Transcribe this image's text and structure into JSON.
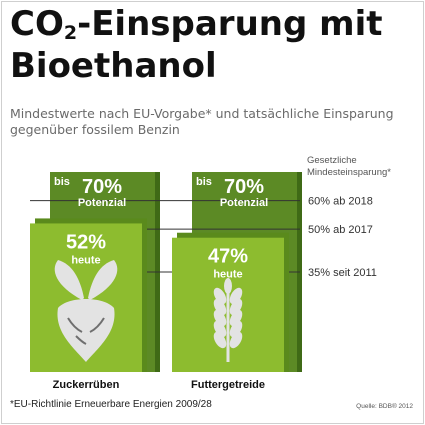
{
  "title_main": "CO",
  "title_sub": "2",
  "title_rest": "-Einsparung mit",
  "title_line2": "Bioethanol",
  "subtitle": "Mindestwerte nach EU-Vorgabe* und tatsächliche Einsparung gegenüber fossilem Benzin",
  "footnote": "*EU-Richtlinie Erneuerbare Energien 2009/28",
  "source": "Quelle: BDB® 2012",
  "colors": {
    "potential_dark": "#5c8a25",
    "potential_shadow": "#3f6a16",
    "actual_light": "#8dbc2f",
    "actual_shadow": "#5a8a1c",
    "icon_fill": "#e3e3e3",
    "icon_dark": "#6f6f6f",
    "reference_line": "#333333",
    "text_light": "#ffffff"
  },
  "icons": [
    "beet-icon",
    "wheat-icon"
  ],
  "chart_data": {
    "type": "bar",
    "categories": [
      "Zuckerrüben",
      "Futtergetreide"
    ],
    "series": [
      {
        "values": [
          70,
          70
        ],
        "labels": [
          {
            "prefix": "bis",
            "value": "70%",
            "caption": "Potenzial"
          },
          {
            "prefix": "bis",
            "value": "70%",
            "caption": "Potenzial"
          }
        ]
      },
      {
        "values": [
          52,
          47
        ],
        "labels": [
          {
            "value": "52%",
            "caption": "heute"
          },
          {
            "value": "47%",
            "caption": "heute"
          }
        ]
      }
    ],
    "reference_title": [
      "Gesetzliche",
      "Mindesteinsparung*"
    ],
    "reference_lines": [
      {
        "value": 60,
        "label": "60% ab 2018"
      },
      {
        "value": 50,
        "label": "50% ab 2017"
      },
      {
        "value": 35,
        "label": "35% seit 2011"
      }
    ],
    "ylim": [
      0,
      70
    ],
    "grid": false,
    "legend": "none"
  }
}
